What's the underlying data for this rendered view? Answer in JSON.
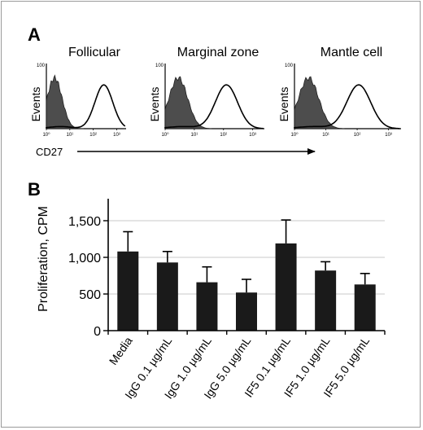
{
  "chart_data": [
    {
      "type": "histogram",
      "panel_label": "A",
      "ylabel": "Events",
      "xlabel": "CD27",
      "x_tick_labels": [
        "10⁰",
        "10¹",
        "10²",
        "10³"
      ],
      "y_tick_label": "100",
      "panels": [
        {
          "title": "Follicular",
          "filled_peak_log10": 0.35,
          "open_peak_log10": 2.45
        },
        {
          "title": "Marginal zone",
          "filled_peak_log10": 0.45,
          "open_peak_log10": 2.1
        },
        {
          "title": "Mantle cell",
          "filled_peak_log10": 0.45,
          "open_peak_log10": 2.05
        }
      ],
      "colors": {
        "filled": "#4d4d4d",
        "open_line": "#000000"
      }
    },
    {
      "type": "bar",
      "panel_label": "B",
      "ylabel": "Proliferation, CPM",
      "xlabel": "",
      "categories": [
        "Media",
        "IgG 0.1 µg/mL",
        "IgG 1.0 µg/mL",
        "IgG 5.0 µg/mL",
        "IF5 0.1 µg/mL",
        "IF5 1.0 µg/mL",
        "IF5 5.0 µg/mL"
      ],
      "values": [
        1080,
        930,
        660,
        520,
        1190,
        820,
        630
      ],
      "errors": [
        270,
        150,
        210,
        180,
        320,
        120,
        150
      ],
      "ylim": [
        0,
        1800
      ],
      "y_ticks": [
        0,
        500,
        1000,
        1500
      ],
      "y_tick_labels": [
        "0",
        "500",
        "1,000",
        "1,500"
      ],
      "grid": true,
      "colors": {
        "bar": "#1a1a1a",
        "grid": "#c8c8c8"
      }
    }
  ]
}
